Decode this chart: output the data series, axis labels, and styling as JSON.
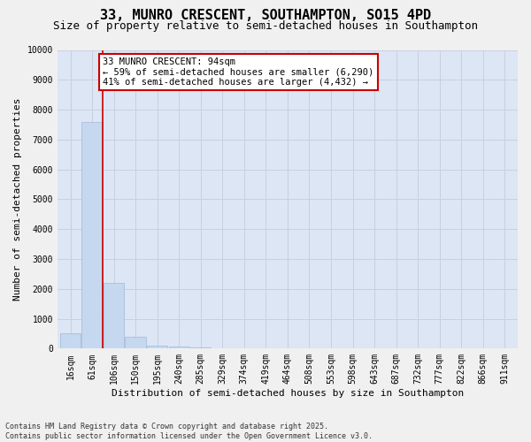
{
  "title": "33, MUNRO CRESCENT, SOUTHAMPTON, SO15 4PD",
  "subtitle": "Size of property relative to semi-detached houses in Southampton",
  "xlabel": "Distribution of semi-detached houses by size in Southampton",
  "ylabel": "Number of semi-detached properties",
  "categories": [
    "16sqm",
    "61sqm",
    "106sqm",
    "150sqm",
    "195sqm",
    "240sqm",
    "285sqm",
    "329sqm",
    "374sqm",
    "419sqm",
    "464sqm",
    "508sqm",
    "553sqm",
    "598sqm",
    "643sqm",
    "687sqm",
    "732sqm",
    "777sqm",
    "822sqm",
    "866sqm",
    "911sqm"
  ],
  "values": [
    500,
    7600,
    2200,
    400,
    110,
    60,
    30,
    0,
    0,
    0,
    0,
    0,
    0,
    0,
    0,
    0,
    0,
    0,
    0,
    0,
    0
  ],
  "bar_color": "#c5d8f0",
  "bar_edge_color": "#a0b8d8",
  "grid_color": "#c8d0e0",
  "bg_color": "#dce6f5",
  "vline_color": "#cc0000",
  "annotation_title": "33 MUNRO CRESCENT: 94sqm",
  "annotation_line1": "← 59% of semi-detached houses are smaller (6,290)",
  "annotation_line2": "41% of semi-detached houses are larger (4,432) →",
  "annotation_box_color": "#cc0000",
  "ylim": [
    0,
    10000
  ],
  "yticks": [
    0,
    1000,
    2000,
    3000,
    4000,
    5000,
    6000,
    7000,
    8000,
    9000,
    10000
  ],
  "footer": "Contains HM Land Registry data © Crown copyright and database right 2025.\nContains public sector information licensed under the Open Government Licence v3.0.",
  "title_fontsize": 11,
  "subtitle_fontsize": 9,
  "axis_label_fontsize": 8,
  "tick_fontsize": 7,
  "annotation_fontsize": 7.5
}
